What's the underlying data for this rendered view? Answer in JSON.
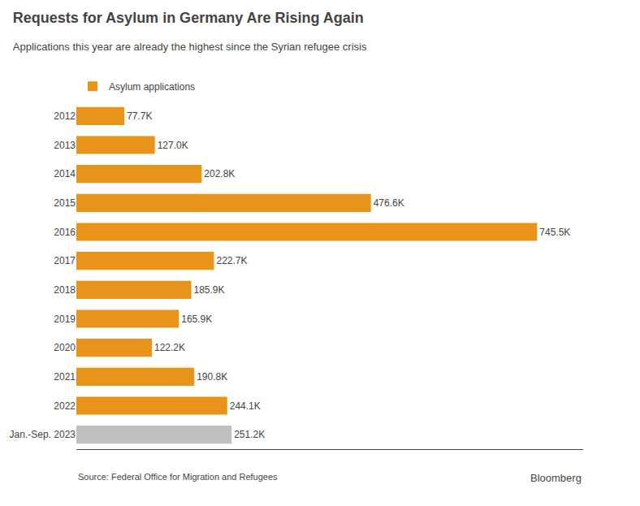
{
  "chart_data": {
    "type": "bar",
    "orientation": "horizontal",
    "title": "Requests for Asylum in Germany Are Rising Again",
    "subtitle": "Applications this year are already the highest since the Syrian refugee crisis",
    "annotations": [
      "Source: Federal Office for Migration and Refugees",
      "Bloomberg"
    ],
    "categories": [
      "2012",
      "2013",
      "2014",
      "2015",
      "2016",
      "2017",
      "2018",
      "2019",
      "2020",
      "2021",
      "2022",
      "Jan.-Sep. 2023"
    ],
    "series": [
      {
        "name": "Asylum applications",
        "color": "#E8941A",
        "colors": [
          "#E8941A",
          "#E8941A",
          "#E8941A",
          "#E8941A",
          "#E8941A",
          "#E8941A",
          "#E8941A",
          "#E8941A",
          "#E8941A",
          "#E8941A",
          "#E8941A",
          "#C0C0C0"
        ],
        "values": [
          77.7,
          127.0,
          202.8,
          476.6,
          745.5,
          222.7,
          185.9,
          165.9,
          122.2,
          190.8,
          244.1,
          251.2
        ],
        "value_labels": [
          "77.7K",
          "127.0K",
          "202.8K",
          "476.6K",
          "745.5K",
          "222.7K",
          "185.9K",
          "165.9K",
          "122.2K",
          "190.8K",
          "244.1K",
          "251.2K"
        ]
      }
    ],
    "xlim": [
      0,
      820
    ],
    "tick_labels": "y",
    "data_labels": true,
    "legend": "top left",
    "grid": false
  }
}
